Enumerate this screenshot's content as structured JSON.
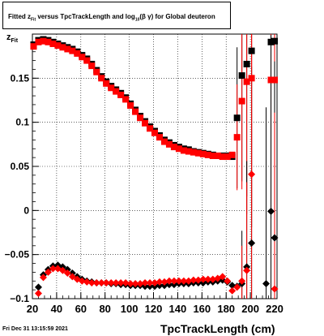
{
  "page": {
    "title": "Fitted  z_{Fit}  versus TpcTrackLength and log_{10}(β γ) for Global deuteron",
    "title_parts": {
      "prefix": "Fitted  z",
      "z_sub": "Fit",
      "mid": "  versus TpcTrackLength and log",
      "log_sub": "10",
      "suffix": "(β  γ) for Global deuteron"
    },
    "ylabel_main": "z",
    "ylabel_sub": "Fit",
    "datestamp": "Fri Dec 31 13:15:59 2021"
  },
  "chart_data": {
    "type": "scatter",
    "title": "Fitted  z_{Fit}  versus TpcTrackLength and log_{10}(β γ) for Global deuteron",
    "xlabel": "TpcTrackLength (cm)",
    "ylabel": "z_{Fit}",
    "xlim": [
      20,
      222
    ],
    "ylim": [
      -0.1,
      0.2
    ],
    "xticks": [
      20,
      40,
      60,
      80,
      100,
      120,
      140,
      160,
      180,
      200,
      220
    ],
    "yticks": [
      -0.1,
      -0.05,
      0,
      0.05,
      0.1,
      0.15
    ],
    "ytick_labels": [
      "−0.1",
      "−0.05",
      "0",
      "0.05",
      "0.1",
      "0.15"
    ],
    "grid": true,
    "series": [
      {
        "marker": "square",
        "color": "#000000",
        "x": [
          21,
          25,
          29,
          33,
          37,
          41,
          45,
          49,
          53,
          57,
          61,
          65,
          69,
          73,
          77,
          81,
          85,
          89,
          93,
          97,
          101,
          105,
          109,
          113,
          117,
          121,
          125,
          129,
          133,
          137,
          141,
          145,
          149,
          153,
          157,
          161,
          165,
          169,
          173,
          177,
          181,
          185,
          189,
          193,
          197,
          201,
          217,
          220
        ],
        "y": [
          0.188,
          0.193,
          0.194,
          0.193,
          0.191,
          0.189,
          0.187,
          0.185,
          0.183,
          0.18,
          0.176,
          0.172,
          0.166,
          0.159,
          0.152,
          0.146,
          0.141,
          0.137,
          0.133,
          0.128,
          0.121,
          0.114,
          0.107,
          0.101,
          0.095,
          0.09,
          0.085,
          0.08,
          0.077,
          0.074,
          0.072,
          0.07,
          0.069,
          0.067,
          0.066,
          0.065,
          0.064,
          0.063,
          0.062,
          0.062,
          0.062,
          0.061,
          0.105,
          0.153,
          0.166,
          0.181,
          0.191,
          0.192
        ],
        "yerr": [
          0,
          0,
          0,
          0,
          0,
          0,
          0,
          0,
          0,
          0,
          0,
          0,
          0,
          0,
          0,
          0,
          0,
          0,
          0,
          0,
          0,
          0,
          0,
          0,
          0,
          0,
          0,
          0,
          0,
          0,
          0,
          0,
          0,
          0,
          0,
          0,
          0,
          0,
          0,
          0,
          0,
          0,
          0.08,
          0.12,
          0.15,
          0.2,
          0.2,
          0.2
        ]
      },
      {
        "marker": "square",
        "color": "#ff0000",
        "x": [
          21,
          25,
          29,
          33,
          37,
          41,
          45,
          49,
          53,
          57,
          61,
          65,
          69,
          73,
          77,
          81,
          85,
          89,
          93,
          97,
          101,
          105,
          109,
          113,
          117,
          121,
          125,
          129,
          133,
          137,
          141,
          145,
          149,
          153,
          157,
          161,
          165,
          169,
          173,
          177,
          181,
          185,
          189,
          193,
          197,
          201,
          217,
          220
        ],
        "y": [
          0.186,
          0.191,
          0.192,
          0.191,
          0.189,
          0.187,
          0.185,
          0.183,
          0.181,
          0.178,
          0.174,
          0.17,
          0.164,
          0.157,
          0.15,
          0.144,
          0.139,
          0.135,
          0.131,
          0.126,
          0.119,
          0.112,
          0.105,
          0.099,
          0.093,
          0.088,
          0.083,
          0.078,
          0.075,
          0.072,
          0.07,
          0.068,
          0.067,
          0.066,
          0.065,
          0.064,
          0.063,
          0.062,
          0.062,
          0.061,
          0.061,
          0.063,
          0.083,
          0.124,
          0.146,
          0.15,
          0.148,
          0.148
        ],
        "yerr": [
          0,
          0,
          0,
          0,
          0,
          0,
          0,
          0,
          0,
          0,
          0,
          0,
          0,
          0,
          0,
          0,
          0,
          0,
          0,
          0,
          0,
          0,
          0,
          0,
          0,
          0,
          0,
          0,
          0,
          0,
          0,
          0,
          0,
          0,
          0,
          0,
          0,
          0,
          0,
          0,
          0,
          0,
          0.06,
          0.1,
          0.15,
          0.15,
          0.15,
          0.15
        ]
      },
      {
        "marker": "diamond",
        "color": "#000000",
        "x": [
          25,
          29,
          33,
          37,
          41,
          45,
          49,
          53,
          57,
          61,
          65,
          69,
          73,
          77,
          81,
          85,
          89,
          93,
          97,
          101,
          105,
          109,
          113,
          117,
          121,
          125,
          129,
          133,
          137,
          141,
          145,
          149,
          153,
          157,
          161,
          165,
          169,
          173,
          177,
          181,
          185,
          189,
          193,
          197,
          201,
          213,
          217,
          220
        ],
        "y": [
          -0.087,
          -0.073,
          -0.067,
          -0.063,
          -0.062,
          -0.064,
          -0.067,
          -0.071,
          -0.075,
          -0.078,
          -0.08,
          -0.081,
          -0.082,
          -0.082,
          -0.082,
          -0.083,
          -0.083,
          -0.084,
          -0.084,
          -0.085,
          -0.085,
          -0.085,
          -0.086,
          -0.086,
          -0.086,
          -0.085,
          -0.085,
          -0.084,
          -0.084,
          -0.083,
          -0.083,
          -0.083,
          -0.082,
          -0.082,
          -0.082,
          -0.081,
          -0.081,
          -0.08,
          -0.079,
          -0.081,
          -0.085,
          -0.086,
          -0.083,
          -0.064,
          -0.037,
          -0.083,
          -0.001,
          -0.031
        ],
        "yerr": [
          0,
          0,
          0,
          0,
          0,
          0,
          0,
          0,
          0,
          0,
          0,
          0,
          0,
          0,
          0,
          0,
          0,
          0,
          0,
          0,
          0,
          0,
          0,
          0,
          0,
          0,
          0,
          0,
          0,
          0,
          0,
          0,
          0,
          0,
          0,
          0,
          0,
          0,
          0,
          0,
          0,
          0,
          0.06,
          0.12,
          0.2,
          0.2,
          0.2,
          0.2
        ]
      },
      {
        "marker": "diamond",
        "color": "#ff0000",
        "x": [
          25,
          29,
          33,
          37,
          41,
          45,
          49,
          53,
          57,
          61,
          65,
          69,
          73,
          77,
          81,
          85,
          89,
          93,
          97,
          101,
          105,
          109,
          113,
          117,
          121,
          125,
          129,
          133,
          137,
          141,
          145,
          149,
          153,
          157,
          161,
          165,
          169,
          173,
          177,
          181,
          185,
          189,
          193,
          197,
          201,
          220
        ],
        "y": [
          -0.094,
          -0.076,
          -0.07,
          -0.066,
          -0.066,
          -0.068,
          -0.071,
          -0.075,
          -0.078,
          -0.08,
          -0.081,
          -0.082,
          -0.082,
          -0.082,
          -0.082,
          -0.082,
          -0.082,
          -0.082,
          -0.082,
          -0.083,
          -0.083,
          -0.083,
          -0.082,
          -0.082,
          -0.082,
          -0.081,
          -0.081,
          -0.08,
          -0.08,
          -0.08,
          -0.08,
          -0.08,
          -0.079,
          -0.079,
          -0.078,
          -0.078,
          -0.078,
          -0.077,
          -0.075,
          -0.08,
          -0.091,
          -0.087,
          -0.08,
          -0.068,
          0.041,
          -0.089
        ],
        "yerr": [
          0,
          0,
          0,
          0,
          0,
          0,
          0,
          0,
          0,
          0,
          0,
          0,
          0,
          0,
          0,
          0,
          0,
          0,
          0,
          0,
          0,
          0,
          0,
          0,
          0,
          0,
          0,
          0,
          0,
          0,
          0,
          0,
          0,
          0,
          0,
          0,
          0,
          0,
          0,
          0,
          0,
          0,
          0.04,
          0.1,
          0.2,
          0.2
        ]
      }
    ]
  }
}
